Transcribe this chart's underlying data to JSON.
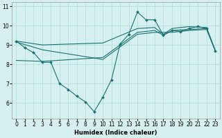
{
  "xlabel": "Humidex (Indice chaleur)",
  "bg_color": "#d6f0f0",
  "grid_color": "#aadddd",
  "line_color": "#1a7070",
  "xlim": [
    -0.5,
    23.5
  ],
  "ylim": [
    5.2,
    11.2
  ],
  "yticks": [
    6,
    7,
    8,
    9,
    10,
    11
  ],
  "xticks": [
    0,
    1,
    2,
    3,
    4,
    5,
    6,
    7,
    8,
    9,
    10,
    11,
    12,
    13,
    14,
    15,
    16,
    17,
    18,
    19,
    20,
    21,
    22,
    23
  ],
  "line1_x": [
    0,
    1,
    2,
    3,
    4,
    5,
    6,
    7,
    8,
    9,
    10,
    11,
    12,
    13,
    14,
    15,
    16,
    17,
    18,
    19,
    20,
    21,
    22,
    23
  ],
  "line1_y": [
    9.2,
    8.85,
    8.6,
    8.1,
    8.1,
    7.0,
    6.7,
    6.35,
    6.05,
    5.55,
    6.3,
    7.2,
    9.05,
    9.55,
    10.7,
    10.3,
    10.3,
    9.5,
    9.75,
    9.7,
    9.85,
    9.95,
    9.85,
    8.7
  ],
  "line2_x": [
    0,
    3,
    10,
    14,
    16,
    18,
    20,
    22,
    23
  ],
  "line2_y": [
    9.15,
    8.75,
    8.25,
    9.55,
    9.65,
    9.65,
    9.75,
    9.8,
    8.7
  ],
  "line3_x": [
    0,
    3,
    10,
    14,
    16,
    17,
    18,
    20,
    22,
    23
  ],
  "line3_y": [
    9.2,
    9.0,
    9.1,
    9.85,
    9.9,
    9.55,
    9.85,
    9.95,
    9.9,
    8.7
  ],
  "line4_x": [
    0,
    3,
    10,
    14,
    16,
    17,
    18,
    20,
    22,
    23
  ],
  "line4_y": [
    8.2,
    8.15,
    8.35,
    9.65,
    9.75,
    9.5,
    9.75,
    9.8,
    9.85,
    8.7
  ]
}
